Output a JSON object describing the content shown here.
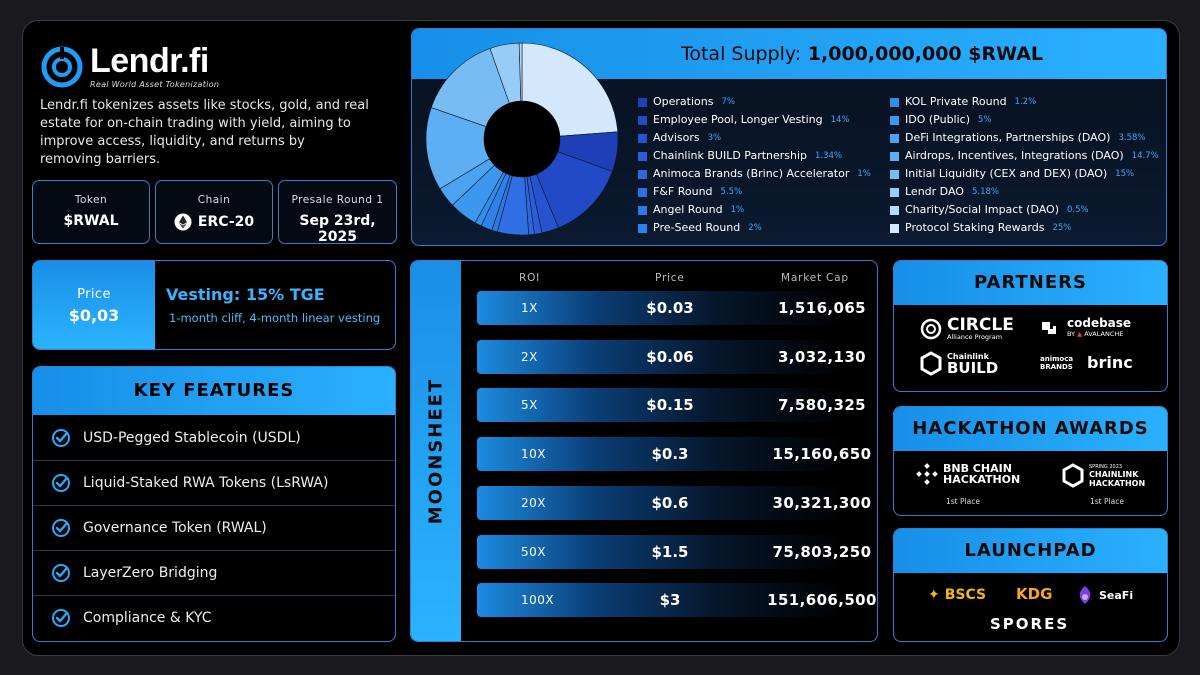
{
  "brand": {
    "name": "Lendr.fi",
    "tagline": "Real World Asset Tokenization",
    "description": "Lendr.fi tokenizes assets like stocks, gold, and real estate for on-chain trading with yield, aiming to improve access, liquidity, and returns by removing barriers."
  },
  "info": [
    {
      "label": "Token",
      "value": "$RWAL"
    },
    {
      "label": "Chain",
      "value": "ERC-20"
    },
    {
      "label": "Presale Round 1",
      "value": "Sep 23rd, 2025"
    }
  ],
  "price": {
    "label": "Price",
    "value": "$0,03",
    "vesting_title": "Vesting: 15% TGE",
    "vesting_detail": "1-month cliff, 4-month linear vesting"
  },
  "key_features": {
    "title": "KEY FEATURES",
    "items": [
      "USD-Pegged Stablecoin (USDL)",
      "Liquid-Staked RWA Tokens (LsRWA)",
      "Governance Token (RWAL)",
      "LayerZero Bridging",
      "Compliance & KYC"
    ]
  },
  "supply": {
    "label": "Total Supply:",
    "amount": "1,000,000,000 $RWAL"
  },
  "chart_data": {
    "type": "pie",
    "title": "Total Supply: 1,000,000,000 $RWAL",
    "categories": [
      "Operations",
      "Employee Pool, Longer Vesting",
      "Advisors",
      "Chainlink BUILD Partnership",
      "Animoca Brands (Brinc) Accelerator",
      "F&F Round",
      "Angel Round",
      "Pre-Seed Round",
      "KOL Private Round",
      "IDO (Public)",
      "DeFi Integrations, Partnerships (DAO)",
      "Airdrops, Incentives, Integrations (DAO)",
      "Initial Liquidity (CEX and DEX) (DAO)",
      "Lendr DAO",
      "Charity/Social Impact (DAO)",
      "Protocol Staking Rewards"
    ],
    "values": [
      7,
      14,
      3,
      1.34,
      1,
      5.5,
      1,
      2,
      1.2,
      5,
      3.58,
      14.7,
      15,
      5.18,
      0.5,
      25
    ],
    "labels": [
      "7%",
      "14%",
      "3%",
      "1.34%",
      "1%",
      "5.5%",
      "1%",
      "2%",
      "1.2%",
      "5%",
      "3.58%",
      "14.7%",
      "15%",
      "5.18%",
      "0.5%",
      "25%"
    ],
    "colors": [
      "#1d3fb8",
      "#2249c6",
      "#2653d0",
      "#2a5dd8",
      "#2e66de",
      "#2f6fe3",
      "#2e78e6",
      "#2d82ea",
      "#2d8eec",
      "#3b98ee",
      "#4aa2f0",
      "#5daef2",
      "#78bcf4",
      "#96ccf6",
      "#b5dbf8",
      "#d3e9fb"
    ],
    "legend_position": "right"
  },
  "moonsheet": {
    "title": "MOONSHEET",
    "headers": [
      "ROI",
      "Price",
      "Market Cap"
    ],
    "rows": [
      {
        "roi": "1X",
        "price": "$0.03",
        "cap": "1,516,065"
      },
      {
        "roi": "2X",
        "price": "$0.06",
        "cap": "3,032,130"
      },
      {
        "roi": "5X",
        "price": "$0.15",
        "cap": "7,580,325"
      },
      {
        "roi": "10X",
        "price": "$0.3",
        "cap": "15,160,650"
      },
      {
        "roi": "20X",
        "price": "$0.6",
        "cap": "30,321,300"
      },
      {
        "roi": "50X",
        "price": "$1.5",
        "cap": "75,803,250"
      },
      {
        "roi": "100X",
        "price": "$3",
        "cap": "151,606,500"
      }
    ]
  },
  "partners": {
    "title": "PARTNERS",
    "circle": "CIRCLE",
    "circle_sub": "Alliance Program",
    "codebase": "codebase",
    "codebase_sub": "AVALANCHE",
    "codebase_by": "BY",
    "chainlink_top": "Chainlink",
    "chainlink_bottom": "BUILD",
    "animoca": "animoca BRANDS",
    "brinc": "brinc"
  },
  "hackathon": {
    "title": "HACKATHON AWARDS",
    "bnb_top": "BNB CHAIN",
    "bnb_bottom": "HACKATHON",
    "bnb_place": "1st Place",
    "cl_top": "CHAINLINK",
    "cl_bottom": "HACKATHON",
    "cl_season": "SPRING 2023",
    "cl_place": "1st Place"
  },
  "launchpad": {
    "title": "LAUNCHPAD",
    "items": [
      "BSCS",
      "KDG",
      "SeaFi",
      "SPORES"
    ]
  },
  "colors": {
    "accent": "#1f9cf5",
    "border": "#2f7fd0",
    "pct": "#3aa8ff"
  }
}
